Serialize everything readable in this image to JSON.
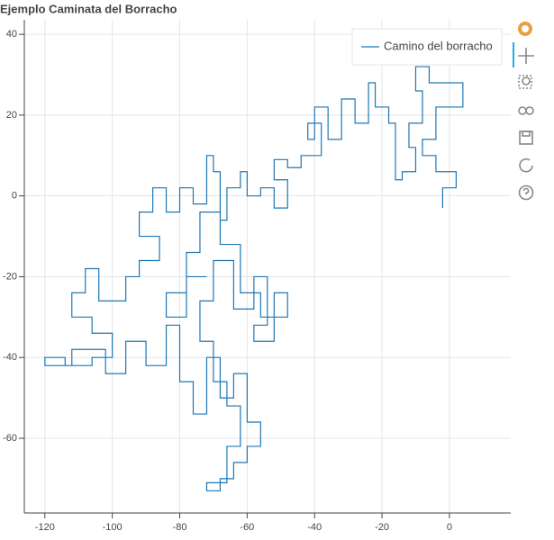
{
  "chart_data": {
    "type": "line",
    "title": "Ejemplo Caminata del Borracho",
    "xlim": [
      -126.1,
      18.2
    ],
    "ylim": [
      -78.5,
      43.6
    ],
    "xticks": [
      -120,
      -100,
      -80,
      -60,
      -40,
      -20,
      0
    ],
    "yticks": [
      -60,
      -40,
      -20,
      0,
      20,
      40
    ],
    "grid": true,
    "legend": "top-right",
    "series": [
      {
        "name": "Camino del borracho",
        "color": "#1f77b4",
        "x": [
          -2,
          -2,
          2,
          2,
          -4,
          -4,
          -8,
          -8,
          -4,
          -4,
          4,
          4,
          -6,
          -6,
          -10,
          -10,
          -8,
          -8,
          -12,
          -12,
          -10,
          -10,
          -14,
          -14,
          -16,
          -16,
          -18,
          -18,
          -22,
          -22,
          -24,
          -24,
          -28,
          -28,
          -32,
          -32,
          -36,
          -36,
          -40,
          -40,
          -42,
          -42,
          -38,
          -38,
          -44,
          -44,
          -48,
          -48,
          -52,
          -52,
          -48,
          -48,
          -52,
          -52,
          -56,
          -56,
          -60,
          -60,
          -62,
          -62,
          -66,
          -66,
          -68,
          -68,
          -70,
          -70,
          -72,
          -72,
          -76,
          -76,
          -80,
          -80,
          -84,
          -84,
          -88,
          -88,
          -92,
          -92,
          -86,
          -86,
          -92,
          -92,
          -96,
          -96,
          -104,
          -104,
          -108,
          -108,
          -112,
          -112,
          -106,
          -106,
          -100,
          -100,
          -106,
          -106,
          -114,
          -114,
          -120,
          -120,
          -112,
          -112,
          -102,
          -102,
          -96,
          -96,
          -90,
          -90,
          -84,
          -84,
          -80,
          -80,
          -76,
          -76,
          -72,
          -72,
          -68,
          -68,
          -64,
          -64,
          -60,
          -60,
          -56,
          -56,
          -60,
          -60,
          -64,
          -64,
          -68,
          -68,
          -72,
          -72,
          -66,
          -66,
          -62,
          -62,
          -66,
          -66,
          -70,
          -70,
          -74,
          -74,
          -70,
          -70,
          -64,
          -64,
          -58,
          -58,
          -54,
          -54,
          -58,
          -58,
          -52,
          -52,
          -48,
          -48,
          -56,
          -56,
          -62,
          -62,
          -68,
          -68,
          -74,
          -74,
          -78,
          -78,
          -84,
          -84,
          -78,
          -78,
          -72
        ],
        "values": [
          -3,
          2,
          2,
          6,
          6,
          10,
          10,
          14,
          14,
          22,
          22,
          28,
          28,
          32,
          32,
          26,
          26,
          18,
          18,
          12,
          12,
          6,
          6,
          4,
          4,
          18,
          18,
          22,
          22,
          28,
          28,
          18,
          18,
          24,
          24,
          14,
          14,
          22,
          22,
          14,
          14,
          18,
          18,
          10,
          10,
          7,
          7,
          9,
          9,
          4,
          4,
          -3,
          -3,
          2,
          2,
          0,
          0,
          6,
          6,
          2,
          2,
          -6,
          -6,
          6,
          6,
          10,
          10,
          -2,
          -2,
          2,
          2,
          -4,
          -4,
          2,
          2,
          -4,
          -4,
          -10,
          -10,
          -16,
          -16,
          -20,
          -20,
          -26,
          -26,
          -18,
          -18,
          -24,
          -24,
          -30,
          -30,
          -34,
          -34,
          -40,
          -40,
          -42,
          -42,
          -40,
          -40,
          -42,
          -42,
          -38,
          -38,
          -44,
          -44,
          -36,
          -36,
          -42,
          -42,
          -32,
          -32,
          -46,
          -46,
          -54,
          -54,
          -40,
          -40,
          -50,
          -50,
          -44,
          -44,
          -56,
          -56,
          -62,
          -62,
          -66,
          -66,
          -70,
          -70,
          -73,
          -73,
          -71,
          -71,
          -62,
          -62,
          -52,
          -52,
          -46,
          -46,
          -36,
          -36,
          -26,
          -26,
          -16,
          -16,
          -28,
          -28,
          -20,
          -20,
          -32,
          -32,
          -36,
          -36,
          -24,
          -24,
          -30,
          -30,
          -24,
          -24,
          -12,
          -12,
          -4,
          -4,
          -14,
          -14,
          -24,
          -24,
          -30,
          -30,
          -20,
          -20
        ]
      }
    ]
  }
}
